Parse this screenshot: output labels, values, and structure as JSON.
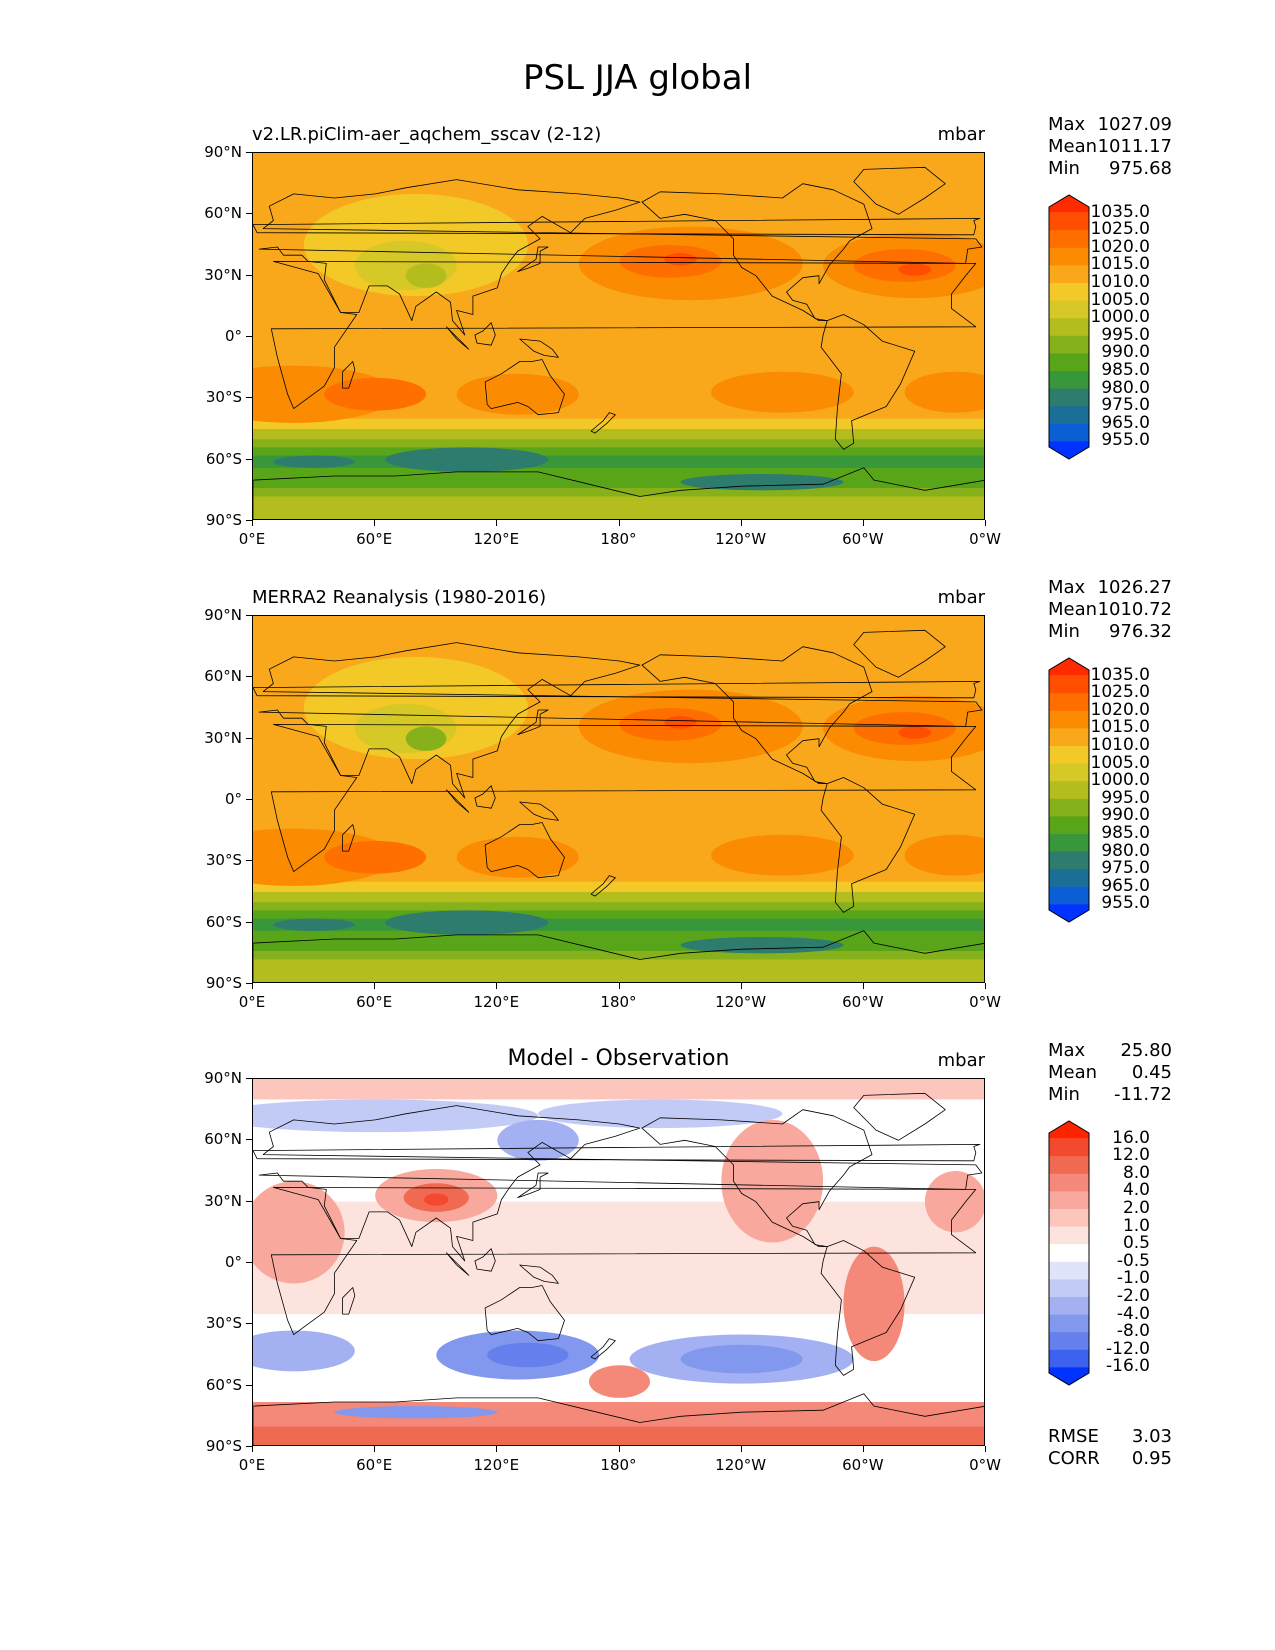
{
  "title": "PSL JJA global",
  "axes": {
    "x_ticks": [
      "0°E",
      "60°E",
      "120°E",
      "180°",
      "120°W",
      "60°W",
      "0°W"
    ],
    "y_ticks": [
      "90°N",
      "60°N",
      "30°N",
      "0°",
      "30°S",
      "60°S",
      "90°S"
    ]
  },
  "panels": [
    {
      "subtitle": "v2.LR.piClim-aer_aqchem_sscav (2-12)",
      "centered_title": "",
      "units": "mbar",
      "stats": [
        {
          "label": "Max",
          "value": "1027.09"
        },
        {
          "label": "Mean",
          "value": "1011.17"
        },
        {
          "label": "Min",
          "value": "975.68"
        }
      ],
      "colorbar": {
        "labels": [
          "1035.0",
          "1025.0",
          "1020.0",
          "1015.0",
          "1010.0",
          "1005.0",
          "1000.0",
          "995.0",
          "990.0",
          "985.0",
          "980.0",
          "975.0",
          "965.0",
          "955.0"
        ],
        "colors": [
          "#ff2a00",
          "#ff4e00",
          "#ff6f00",
          "#fb8b00",
          "#f9a81c",
          "#f2c927",
          "#d6c826",
          "#b4bd1e",
          "#86b11a",
          "#58a519",
          "#37973a",
          "#2e7c6e",
          "#1b6f96",
          "#0a5fd5",
          "#0033ff"
        ]
      }
    },
    {
      "subtitle": "MERRA2 Reanalysis (1980-2016)",
      "centered_title": "",
      "units": "mbar",
      "stats": [
        {
          "label": "Max",
          "value": "1026.27"
        },
        {
          "label": "Mean",
          "value": "1010.72"
        },
        {
          "label": "Min",
          "value": "976.32"
        }
      ],
      "colorbar": {
        "labels": [
          "1035.0",
          "1025.0",
          "1020.0",
          "1015.0",
          "1010.0",
          "1005.0",
          "1000.0",
          "995.0",
          "990.0",
          "985.0",
          "980.0",
          "975.0",
          "965.0",
          "955.0"
        ],
        "colors": [
          "#ff2a00",
          "#ff4e00",
          "#ff6f00",
          "#fb8b00",
          "#f9a81c",
          "#f2c927",
          "#d6c826",
          "#b4bd1e",
          "#86b11a",
          "#58a519",
          "#37973a",
          "#2e7c6e",
          "#1b6f96",
          "#0a5fd5",
          "#0033ff"
        ]
      }
    },
    {
      "subtitle": "",
      "centered_title": "Model - Observation",
      "units": "mbar",
      "stats": [
        {
          "label": "Max",
          "value": "25.80"
        },
        {
          "label": "Mean",
          "value": "0.45"
        },
        {
          "label": "Min",
          "value": "-11.72"
        }
      ],
      "extra_stats": [
        {
          "label": "RMSE",
          "value": "3.03"
        },
        {
          "label": "CORR",
          "value": "0.95"
        }
      ],
      "colorbar": {
        "labels": [
          "16.0",
          "12.0",
          "8.0",
          "4.0",
          "2.0",
          "1.0",
          "0.5",
          "-0.5",
          "-1.0",
          "-2.0",
          "-4.0",
          "-8.0",
          "-12.0",
          "-16.0"
        ],
        "colors": [
          "#ff2400",
          "#f2492f",
          "#f06a52",
          "#f4897a",
          "#f8a89c",
          "#fcc6bd",
          "#fde3de",
          "#ffffff",
          "#dfe4fb",
          "#c2cbf6",
          "#a3b1f2",
          "#8298ee",
          "#6580ec",
          "#3e62f0",
          "#0033ff"
        ]
      }
    }
  ]
}
